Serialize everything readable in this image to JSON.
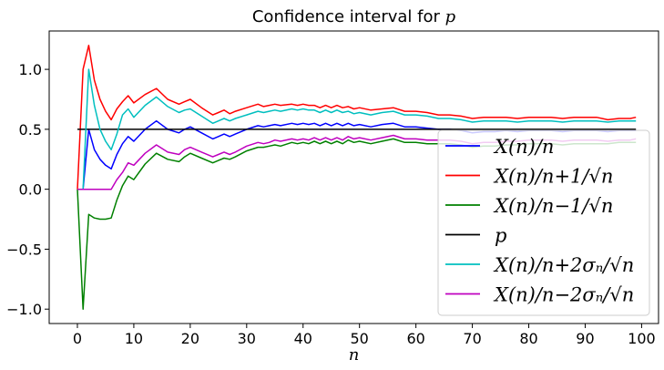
{
  "chart_data": {
    "type": "line",
    "title": "Confidence interval for p",
    "xlabel": "n",
    "ylabel": "",
    "xlim": [
      -5,
      103
    ],
    "ylim": [
      -1.12,
      1.32
    ],
    "xticks": [
      0,
      10,
      20,
      30,
      40,
      50,
      60,
      70,
      80,
      90,
      100
    ],
    "yticks": [
      -1.0,
      -0.5,
      0.0,
      0.5,
      1.0
    ],
    "ytick_labels": [
      "−1.0",
      "−0.5",
      "0.0",
      "0.5",
      "1.0"
    ],
    "grid": false,
    "legend_position": "lower-right",
    "series": [
      {
        "name": "X(n)/n",
        "color": "#0000ff",
        "x": [
          0,
          1,
          2,
          3,
          4,
          5,
          6,
          7,
          8,
          9,
          10,
          12,
          14,
          16,
          18,
          19,
          20,
          22,
          24,
          25,
          26,
          27,
          28,
          30,
          32,
          33,
          34,
          35,
          36,
          38,
          39,
          40,
          41,
          42,
          43,
          44,
          45,
          46,
          47,
          48,
          49,
          50,
          52,
          54,
          56,
          58,
          60,
          62,
          64,
          66,
          68,
          70,
          72,
          74,
          76,
          78,
          80,
          82,
          84,
          86,
          88,
          90,
          92,
          94,
          96,
          98,
          99
        ],
        "y": [
          0.0,
          0.0,
          0.5,
          0.33,
          0.25,
          0.2,
          0.17,
          0.29,
          0.38,
          0.44,
          0.4,
          0.5,
          0.57,
          0.5,
          0.47,
          0.5,
          0.52,
          0.47,
          0.42,
          0.44,
          0.46,
          0.44,
          0.46,
          0.5,
          0.53,
          0.52,
          0.53,
          0.54,
          0.53,
          0.55,
          0.54,
          0.55,
          0.54,
          0.55,
          0.53,
          0.55,
          0.53,
          0.55,
          0.53,
          0.55,
          0.53,
          0.54,
          0.52,
          0.54,
          0.55,
          0.52,
          0.52,
          0.51,
          0.5,
          0.5,
          0.49,
          0.47,
          0.48,
          0.48,
          0.49,
          0.48,
          0.49,
          0.49,
          0.49,
          0.48,
          0.49,
          0.49,
          0.49,
          0.48,
          0.49,
          0.49,
          0.49
        ]
      },
      {
        "name": "X(n)/n+1/√n",
        "color": "#ff0000",
        "x": [
          0,
          1,
          2,
          3,
          4,
          5,
          6,
          7,
          8,
          9,
          10,
          12,
          14,
          16,
          18,
          19,
          20,
          22,
          24,
          25,
          26,
          27,
          28,
          30,
          32,
          33,
          34,
          35,
          36,
          38,
          39,
          40,
          41,
          42,
          43,
          44,
          45,
          46,
          47,
          48,
          49,
          50,
          52,
          54,
          56,
          58,
          60,
          62,
          64,
          66,
          68,
          70,
          72,
          74,
          76,
          78,
          80,
          82,
          84,
          86,
          88,
          90,
          92,
          94,
          96,
          98,
          99
        ],
        "y": [
          0.0,
          1.0,
          1.2,
          0.91,
          0.75,
          0.65,
          0.58,
          0.67,
          0.73,
          0.78,
          0.72,
          0.79,
          0.84,
          0.75,
          0.71,
          0.73,
          0.75,
          0.68,
          0.62,
          0.64,
          0.66,
          0.63,
          0.65,
          0.68,
          0.71,
          0.69,
          0.7,
          0.71,
          0.7,
          0.71,
          0.7,
          0.71,
          0.7,
          0.7,
          0.68,
          0.7,
          0.68,
          0.7,
          0.68,
          0.69,
          0.67,
          0.68,
          0.66,
          0.67,
          0.68,
          0.65,
          0.65,
          0.64,
          0.62,
          0.62,
          0.61,
          0.59,
          0.6,
          0.6,
          0.6,
          0.59,
          0.6,
          0.6,
          0.6,
          0.59,
          0.6,
          0.6,
          0.6,
          0.58,
          0.59,
          0.59,
          0.6
        ]
      },
      {
        "name": "X(n)/n−1/√n",
        "color": "#008000",
        "x": [
          0,
          1,
          2,
          3,
          4,
          5,
          6,
          7,
          8,
          9,
          10,
          12,
          14,
          16,
          18,
          19,
          20,
          22,
          24,
          25,
          26,
          27,
          28,
          30,
          32,
          33,
          34,
          35,
          36,
          38,
          39,
          40,
          41,
          42,
          43,
          44,
          45,
          46,
          47,
          48,
          49,
          50,
          52,
          54,
          56,
          58,
          60,
          62,
          64,
          66,
          68,
          70,
          72,
          74,
          76,
          78,
          80,
          82,
          84,
          86,
          88,
          90,
          92,
          94,
          96,
          98,
          99
        ],
        "y": [
          0.0,
          -1.0,
          -0.21,
          -0.24,
          -0.25,
          -0.25,
          -0.24,
          -0.09,
          0.03,
          0.11,
          0.08,
          0.21,
          0.3,
          0.25,
          0.23,
          0.27,
          0.3,
          0.26,
          0.22,
          0.24,
          0.26,
          0.25,
          0.27,
          0.32,
          0.35,
          0.35,
          0.36,
          0.37,
          0.36,
          0.39,
          0.38,
          0.39,
          0.38,
          0.4,
          0.38,
          0.4,
          0.38,
          0.4,
          0.38,
          0.41,
          0.39,
          0.4,
          0.38,
          0.4,
          0.42,
          0.39,
          0.39,
          0.38,
          0.38,
          0.38,
          0.37,
          0.35,
          0.36,
          0.36,
          0.37,
          0.37,
          0.38,
          0.38,
          0.38,
          0.37,
          0.38,
          0.38,
          0.38,
          0.38,
          0.39,
          0.39,
          0.39
        ]
      },
      {
        "name": "p",
        "color": "#000000",
        "x": [
          0,
          99
        ],
        "y": [
          0.5,
          0.5
        ]
      },
      {
        "name": "X(n)/n+2σₙ/√n",
        "color": "#00bfbf",
        "x": [
          0,
          1,
          2,
          3,
          4,
          5,
          6,
          7,
          8,
          9,
          10,
          12,
          14,
          16,
          18,
          19,
          20,
          22,
          24,
          25,
          26,
          27,
          28,
          30,
          32,
          33,
          34,
          35,
          36,
          38,
          39,
          40,
          41,
          42,
          43,
          44,
          45,
          46,
          47,
          48,
          49,
          50,
          52,
          54,
          56,
          58,
          60,
          62,
          64,
          66,
          68,
          70,
          72,
          74,
          76,
          78,
          80,
          82,
          84,
          86,
          88,
          90,
          92,
          94,
          96,
          98,
          99
        ],
        "y": [
          0.0,
          0.0,
          1.0,
          0.7,
          0.5,
          0.4,
          0.33,
          0.46,
          0.62,
          0.67,
          0.6,
          0.7,
          0.77,
          0.69,
          0.64,
          0.66,
          0.67,
          0.61,
          0.55,
          0.57,
          0.59,
          0.57,
          0.59,
          0.62,
          0.65,
          0.64,
          0.65,
          0.66,
          0.65,
          0.67,
          0.66,
          0.67,
          0.66,
          0.66,
          0.64,
          0.66,
          0.64,
          0.66,
          0.64,
          0.65,
          0.63,
          0.64,
          0.62,
          0.64,
          0.65,
          0.62,
          0.62,
          0.61,
          0.59,
          0.59,
          0.58,
          0.56,
          0.57,
          0.57,
          0.57,
          0.56,
          0.57,
          0.57,
          0.57,
          0.56,
          0.57,
          0.57,
          0.57,
          0.56,
          0.57,
          0.57,
          0.57
        ]
      },
      {
        "name": "X(n)/n−2σₙ/√n",
        "color": "#bf00bf",
        "x": [
          0,
          1,
          2,
          3,
          4,
          5,
          6,
          7,
          8,
          9,
          10,
          12,
          14,
          16,
          18,
          19,
          20,
          22,
          24,
          25,
          26,
          27,
          28,
          30,
          32,
          33,
          34,
          35,
          36,
          38,
          39,
          40,
          41,
          42,
          43,
          44,
          45,
          46,
          47,
          48,
          49,
          50,
          52,
          54,
          56,
          58,
          60,
          62,
          64,
          66,
          68,
          70,
          72,
          74,
          76,
          78,
          80,
          82,
          84,
          86,
          88,
          90,
          92,
          94,
          96,
          98,
          99
        ],
        "y": [
          0.0,
          0.0,
          0.0,
          0.0,
          0.0,
          0.0,
          0.0,
          0.08,
          0.14,
          0.22,
          0.2,
          0.3,
          0.37,
          0.31,
          0.29,
          0.33,
          0.35,
          0.31,
          0.27,
          0.29,
          0.31,
          0.29,
          0.31,
          0.36,
          0.39,
          0.38,
          0.39,
          0.41,
          0.4,
          0.42,
          0.41,
          0.42,
          0.41,
          0.43,
          0.41,
          0.43,
          0.41,
          0.43,
          0.41,
          0.44,
          0.42,
          0.43,
          0.41,
          0.43,
          0.45,
          0.42,
          0.42,
          0.41,
          0.41,
          0.41,
          0.4,
          0.38,
          0.39,
          0.39,
          0.4,
          0.4,
          0.41,
          0.41,
          0.41,
          0.4,
          0.41,
          0.41,
          0.41,
          0.4,
          0.41,
          0.41,
          0.42
        ]
      }
    ]
  }
}
